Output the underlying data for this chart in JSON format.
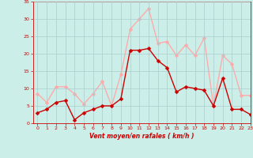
{
  "x": [
    0,
    1,
    2,
    3,
    4,
    5,
    6,
    7,
    8,
    9,
    10,
    11,
    12,
    13,
    14,
    15,
    16,
    17,
    18,
    19,
    20,
    21,
    22,
    23
  ],
  "wind_mean": [
    3,
    4,
    6,
    6.5,
    1,
    3,
    4,
    5,
    5,
    7,
    21,
    21,
    21.5,
    18,
    16,
    9,
    10.5,
    10,
    9.5,
    5,
    13,
    4,
    4,
    2.5
  ],
  "wind_gust": [
    8.5,
    6,
    10.5,
    10.5,
    8.5,
    5.5,
    8.5,
    12,
    5,
    14,
    27,
    30,
    33,
    23,
    23.5,
    19.5,
    22.5,
    19.5,
    24.5,
    5,
    19.5,
    17,
    8,
    8
  ],
  "mean_color": "#cc0000",
  "gust_color": "#ffaaaa",
  "bg_color": "#cceee8",
  "grid_color": "#aacccc",
  "axis_color": "#cc0000",
  "xlabel": "Vent moyen/en rafales ( km/h )",
  "ylim": [
    0,
    35
  ],
  "xlim": [
    -0.5,
    23
  ],
  "yticks": [
    0,
    5,
    10,
    15,
    20,
    25,
    30,
    35
  ],
  "xticks": [
    0,
    1,
    2,
    3,
    4,
    5,
    6,
    7,
    8,
    9,
    10,
    11,
    12,
    13,
    14,
    15,
    16,
    17,
    18,
    19,
    20,
    21,
    22,
    23
  ],
  "marker_size": 2.5,
  "line_width": 1.0
}
